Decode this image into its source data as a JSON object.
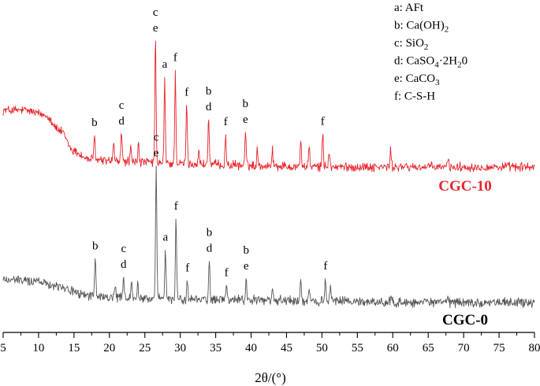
{
  "chart_data": {
    "type": "line",
    "xlabel": "2θ/(°)",
    "ylabel": "",
    "xlim": [
      5,
      80
    ],
    "x_ticks": [
      "5",
      "10",
      "15",
      "20",
      "25",
      "30",
      "35",
      "40",
      "45",
      "50",
      "55",
      "60",
      "65",
      "70",
      "75",
      "80"
    ],
    "grid": false,
    "legend": {
      "placement": "top-right",
      "entries": [
        {
          "key": "a:",
          "name": "AFt",
          "parts": [
            {
              "t": "AFt"
            }
          ]
        },
        {
          "key": "b:",
          "name": "Ca(OH)2",
          "parts": [
            {
              "t": "Ca(OH)"
            },
            {
              "t": "2",
              "sub": true
            }
          ]
        },
        {
          "key": "c:",
          "name": "SiO2",
          "parts": [
            {
              "t": "SiO"
            },
            {
              "t": "2",
              "sub": true
            }
          ]
        },
        {
          "key": "d:",
          "name": "CaSO4·2H20",
          "parts": [
            {
              "t": "CaSO"
            },
            {
              "t": "4",
              "sub": true
            },
            {
              "t": "·2H"
            },
            {
              "t": "2",
              "sub": true
            },
            {
              "t": "0"
            }
          ]
        },
        {
          "key": "e:",
          "name": "CaCO3",
          "parts": [
            {
              "t": "CaCO"
            },
            {
              "t": "3",
              "sub": true
            }
          ]
        },
        {
          "key": "f:",
          "name": "C-S-H",
          "parts": [
            {
              "t": "C-S-H"
            }
          ]
        }
      ]
    },
    "series": [
      {
        "name": "CGC-10",
        "color": "#e8232a",
        "label_color": "#e8232a",
        "background": [
          [
            5,
            0.72
          ],
          [
            8,
            0.72
          ],
          [
            11,
            0.66
          ],
          [
            13,
            0.46
          ],
          [
            15,
            0.2
          ],
          [
            17,
            0.1
          ],
          [
            20,
            0.08
          ],
          [
            25,
            0.06
          ],
          [
            30,
            0.04
          ],
          [
            40,
            0.02
          ],
          [
            50,
            0.0
          ],
          [
            60,
            0.0
          ],
          [
            70,
            0.0
          ],
          [
            80,
            0.0
          ]
        ],
        "peaks": [
          {
            "x": 17.9,
            "h": 0.3,
            "labels": [
              "b"
            ]
          },
          {
            "x": 20.6,
            "h": 0.22,
            "labels": []
          },
          {
            "x": 21.7,
            "h": 0.38,
            "labels": [
              "c",
              "d"
            ]
          },
          {
            "x": 23.0,
            "h": 0.18,
            "labels": []
          },
          {
            "x": 24.1,
            "h": 0.26,
            "labels": []
          },
          {
            "x": 26.5,
            "h": 1.55,
            "labels": [
              "c",
              "e"
            ]
          },
          {
            "x": 27.8,
            "h": 1.05,
            "labels": [
              "a"
            ]
          },
          {
            "x": 29.3,
            "h": 1.15,
            "labels": [
              "f"
            ]
          },
          {
            "x": 30.9,
            "h": 0.8,
            "labels": [
              "f"
            ]
          },
          {
            "x": 32.6,
            "h": 0.18,
            "labels": []
          },
          {
            "x": 34.0,
            "h": 0.6,
            "labels": [
              "b",
              "d"
            ]
          },
          {
            "x": 36.4,
            "h": 0.38,
            "labels": [
              "f"
            ]
          },
          {
            "x": 39.2,
            "h": 0.44,
            "labels": [
              "b",
              "e"
            ]
          },
          {
            "x": 40.9,
            "h": 0.22,
            "labels": []
          },
          {
            "x": 43.0,
            "h": 0.22,
            "labels": []
          },
          {
            "x": 47.0,
            "h": 0.36,
            "labels": []
          },
          {
            "x": 48.2,
            "h": 0.28,
            "labels": []
          },
          {
            "x": 50.1,
            "h": 0.44,
            "labels": [
              "f"
            ]
          },
          {
            "x": 51.0,
            "h": 0.22,
            "labels": []
          },
          {
            "x": 59.7,
            "h": 0.22,
            "labels": []
          },
          {
            "x": 67.8,
            "h": 0.12,
            "labels": []
          }
        ]
      },
      {
        "name": "CGC-0",
        "color": "#555555",
        "label_color": "#000000",
        "background": [
          [
            5,
            0.28
          ],
          [
            10,
            0.26
          ],
          [
            13,
            0.2
          ],
          [
            16,
            0.1
          ],
          [
            20,
            0.06
          ],
          [
            30,
            0.04
          ],
          [
            50,
            0.02
          ],
          [
            60,
            0.0
          ],
          [
            80,
            0.0
          ]
        ],
        "peaks": [
          {
            "x": 18.0,
            "h": 0.45,
            "labels": [
              "b"
            ]
          },
          {
            "x": 20.8,
            "h": 0.18,
            "labels": []
          },
          {
            "x": 22.0,
            "h": 0.22,
            "labels": [
              "c",
              "d"
            ]
          },
          {
            "x": 23.1,
            "h": 0.18,
            "labels": []
          },
          {
            "x": 24.0,
            "h": 0.18,
            "labels": []
          },
          {
            "x": 26.6,
            "h": 1.65,
            "labels": [
              "c",
              "e"
            ]
          },
          {
            "x": 27.9,
            "h": 0.62,
            "labels": [
              "a"
            ]
          },
          {
            "x": 29.4,
            "h": 1.0,
            "labels": [
              "f"
            ]
          },
          {
            "x": 31.0,
            "h": 0.22,
            "labels": [
              "f"
            ]
          },
          {
            "x": 34.1,
            "h": 0.45,
            "labels": [
              "b",
              "d"
            ]
          },
          {
            "x": 36.5,
            "h": 0.18,
            "labels": [
              "f"
            ]
          },
          {
            "x": 39.3,
            "h": 0.28,
            "labels": [
              "b",
              "e"
            ]
          },
          {
            "x": 43.0,
            "h": 0.14,
            "labels": []
          },
          {
            "x": 47.0,
            "h": 0.24,
            "labels": []
          },
          {
            "x": 48.2,
            "h": 0.18,
            "labels": []
          },
          {
            "x": 50.5,
            "h": 0.24,
            "labels": [
              "f"
            ]
          },
          {
            "x": 51.2,
            "h": 0.18,
            "labels": []
          },
          {
            "x": 59.8,
            "h": 0.08,
            "labels": []
          },
          {
            "x": 67.8,
            "h": 0.06,
            "labels": []
          }
        ]
      }
    ]
  }
}
